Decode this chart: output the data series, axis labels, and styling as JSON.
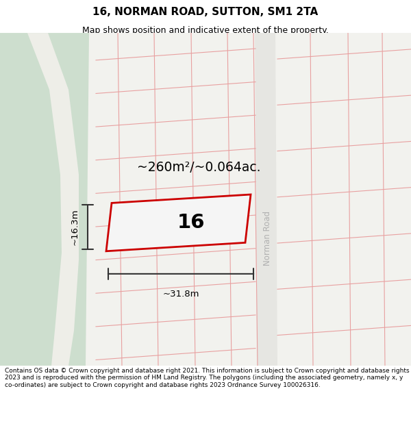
{
  "title": "16, NORMAN ROAD, SUTTON, SM1 2TA",
  "subtitle": "Map shows position and indicative extent of the property.",
  "footer": "Contains OS data © Crown copyright and database right 2021. This information is subject to Crown copyright and database rights 2023 and is reproduced with the permission of HM Land Registry. The polygons (including the associated geometry, namely x, y co-ordinates) are subject to Crown copyright and database rights 2023 Ordnance Survey 100026316.",
  "area_label": "~260m²/~0.064ac.",
  "width_label": "~31.8m",
  "height_label": "~16.3m",
  "number_label": "16",
  "bg_color": "#f0f0ec",
  "green_color": "#cddece",
  "white_path_color": "#eeeee8",
  "brown_color": "#d2c8bc",
  "road_color": "#e6e6e2",
  "block_fill": "#e8e8e4",
  "grid_color": "#e8a0a0",
  "prop_edge_color": "#cc0000",
  "prop_fill_color": "#f5f5f5",
  "dim_color": "#333333",
  "road_label_color": "#b0b0b0",
  "title_fontsize": 11,
  "subtitle_fontsize": 9,
  "footer_fontsize": 6.5,
  "tilt_deg": -7
}
